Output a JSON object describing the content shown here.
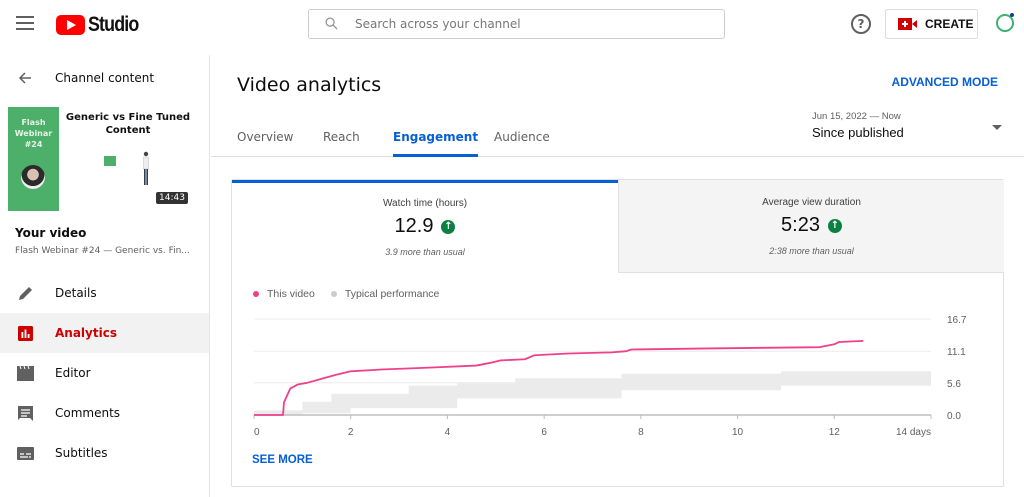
{
  "topbar": {
    "logo_text": "Studio",
    "search_placeholder": "Search across your channel",
    "help_glyph": "?",
    "create_label": "CREATE"
  },
  "sidebar": {
    "back_label": "Channel content",
    "thumbnail": {
      "left_text": "Flash Webinar #24",
      "title": "Generic vs Fine Tuned Content",
      "duration": "14:43"
    },
    "your_video_label": "Your video",
    "video_title": "Flash Webinar #24 — Generic vs. Fin...",
    "items": [
      {
        "label": "Details",
        "icon": "pencil-icon",
        "active": false
      },
      {
        "label": "Analytics",
        "icon": "analytics-icon",
        "active": true
      },
      {
        "label": "Editor",
        "icon": "clapperboard-icon",
        "active": false
      },
      {
        "label": "Comments",
        "icon": "comment-icon",
        "active": false
      },
      {
        "label": "Subtitles",
        "icon": "subtitles-icon",
        "active": false
      }
    ]
  },
  "main": {
    "title": "Video analytics",
    "advanced_mode": "ADVANCED MODE",
    "tabs": [
      {
        "label": "Overview",
        "active": false
      },
      {
        "label": "Reach",
        "active": false
      },
      {
        "label": "Engagement",
        "active": true
      },
      {
        "label": "Audience",
        "active": false
      }
    ],
    "date_range": {
      "range": "Jun 15, 2022 — Now",
      "label": "Since published"
    },
    "metrics": [
      {
        "label": "Watch time (hours)",
        "value": "12.9",
        "trend": "up",
        "note": "3.9 more than usual"
      },
      {
        "label": "Average view duration",
        "value": "5:23",
        "trend": "up",
        "note": "2:38 more than usual"
      }
    ],
    "see_more": "SEE MORE"
  },
  "colors": {
    "accent_blue": "#065fd4",
    "brand_red": "#ff0000",
    "this_video": "#f0408c",
    "typical": "#ebebeb",
    "up_green": "#0b8043"
  },
  "chart_data": {
    "type": "line",
    "title": "Watch time (hours)",
    "xlabel": "days",
    "ylabel": "",
    "xlim": [
      0,
      14
    ],
    "ylim": [
      0,
      16.7
    ],
    "x_ticks": [
      "0",
      "2",
      "4",
      "6",
      "8",
      "10",
      "12",
      "14 days"
    ],
    "y_ticks": [
      "0.0",
      "5.6",
      "11.1",
      "16.7"
    ],
    "legend": [
      "This video",
      "Typical performance"
    ],
    "legend_position": "top-left",
    "grid": true,
    "series": [
      {
        "name": "This video",
        "color": "#f0408c",
        "x": [
          0,
          0.6,
          0.62,
          0.75,
          0.9,
          1.1,
          1.4,
          1.7,
          2.0,
          2.6,
          3.5,
          4.6,
          4.9,
          5.1,
          5.6,
          5.8,
          6.5,
          7.4,
          7.7,
          7.8,
          9.6,
          11.7,
          12.0,
          12.1,
          12.6
        ],
        "values": [
          0,
          0,
          2.2,
          4.6,
          5.3,
          5.6,
          6.3,
          7.0,
          7.6,
          7.9,
          8.2,
          8.6,
          9.1,
          9.5,
          9.7,
          10.4,
          10.7,
          10.9,
          11.1,
          11.4,
          11.6,
          11.8,
          12.3,
          12.7,
          12.9
        ]
      },
      {
        "name": "Typical performance (range)",
        "color": "#ebebeb",
        "x": [
          0,
          0.5,
          0.6,
          1.0,
          1.6,
          2.0,
          3.2,
          4.2,
          5.4,
          7.6,
          8.4,
          10.9,
          12.2,
          13.6,
          14
        ],
        "lower": [
          0,
          0,
          0,
          0.3,
          0.3,
          1.2,
          1.2,
          2.9,
          2.9,
          4.3,
          4.3,
          5.1,
          5.1,
          5.1,
          5.1
        ],
        "upper": [
          0.8,
          0.8,
          0.8,
          2.3,
          3.7,
          3.7,
          5.1,
          5.5,
          6.4,
          7.2,
          7.2,
          7.6,
          7.6,
          7.6,
          9.0
        ]
      }
    ]
  }
}
